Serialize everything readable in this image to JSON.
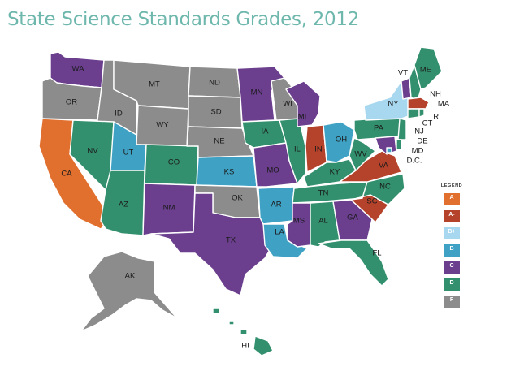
{
  "title": "State Science Standards Grades, 2012",
  "colors": {
    "A": "#e1702e",
    "A-": "#b5422a",
    "B+": "#a8d8f0",
    "B": "#3fa2c4",
    "C": "#6b3f8e",
    "D": "#33906e",
    "F": "#8c8c8c"
  },
  "legend": {
    "title": "LEGEND",
    "items": [
      {
        "grade": "A"
      },
      {
        "grade": "A-"
      },
      {
        "grade": "B+"
      },
      {
        "grade": "B"
      },
      {
        "grade": "C"
      },
      {
        "grade": "D"
      },
      {
        "grade": "F"
      }
    ]
  },
  "states": [
    {
      "abbr": "WA",
      "grade": "C"
    },
    {
      "abbr": "OR",
      "grade": "F"
    },
    {
      "abbr": "CA",
      "grade": "A"
    },
    {
      "abbr": "ID",
      "grade": "F"
    },
    {
      "abbr": "NV",
      "grade": "D"
    },
    {
      "abbr": "MT",
      "grade": "F"
    },
    {
      "abbr": "WY",
      "grade": "F"
    },
    {
      "abbr": "UT",
      "grade": "B"
    },
    {
      "abbr": "AZ",
      "grade": "D"
    },
    {
      "abbr": "CO",
      "grade": "D"
    },
    {
      "abbr": "NM",
      "grade": "C"
    },
    {
      "abbr": "ND",
      "grade": "F"
    },
    {
      "abbr": "SD",
      "grade": "F"
    },
    {
      "abbr": "NE",
      "grade": "F"
    },
    {
      "abbr": "KS",
      "grade": "B"
    },
    {
      "abbr": "OK",
      "grade": "F"
    },
    {
      "abbr": "TX",
      "grade": "C"
    },
    {
      "abbr": "MN",
      "grade": "C"
    },
    {
      "abbr": "IA",
      "grade": "D"
    },
    {
      "abbr": "MO",
      "grade": "C"
    },
    {
      "abbr": "AR",
      "grade": "B"
    },
    {
      "abbr": "LA",
      "grade": "B"
    },
    {
      "abbr": "WI",
      "grade": "F"
    },
    {
      "abbr": "IL",
      "grade": "D"
    },
    {
      "abbr": "MI",
      "grade": "C"
    },
    {
      "abbr": "IN",
      "grade": "A-"
    },
    {
      "abbr": "OH",
      "grade": "B"
    },
    {
      "abbr": "KY",
      "grade": "D"
    },
    {
      "abbr": "TN",
      "grade": "D"
    },
    {
      "abbr": "MS",
      "grade": "C"
    },
    {
      "abbr": "AL",
      "grade": "D"
    },
    {
      "abbr": "GA",
      "grade": "C"
    },
    {
      "abbr": "FL",
      "grade": "D"
    },
    {
      "abbr": "SC",
      "grade": "A-"
    },
    {
      "abbr": "NC",
      "grade": "D"
    },
    {
      "abbr": "VA",
      "grade": "A-"
    },
    {
      "abbr": "WV",
      "grade": "D"
    },
    {
      "abbr": "PA",
      "grade": "D"
    },
    {
      "abbr": "NY",
      "grade": "B+"
    },
    {
      "abbr": "VT",
      "grade": "C"
    },
    {
      "abbr": "NH",
      "grade": "D"
    },
    {
      "abbr": "ME",
      "grade": "D"
    },
    {
      "abbr": "MA",
      "grade": "A-"
    },
    {
      "abbr": "RI",
      "grade": "D"
    },
    {
      "abbr": "CT",
      "grade": "D"
    },
    {
      "abbr": "NJ",
      "grade": "D"
    },
    {
      "abbr": "DE",
      "grade": "D"
    },
    {
      "abbr": "MD",
      "grade": "C"
    },
    {
      "abbr": "D.C.",
      "grade": "B"
    },
    {
      "abbr": "AK",
      "grade": "F"
    },
    {
      "abbr": "HI",
      "grade": "D"
    }
  ]
}
